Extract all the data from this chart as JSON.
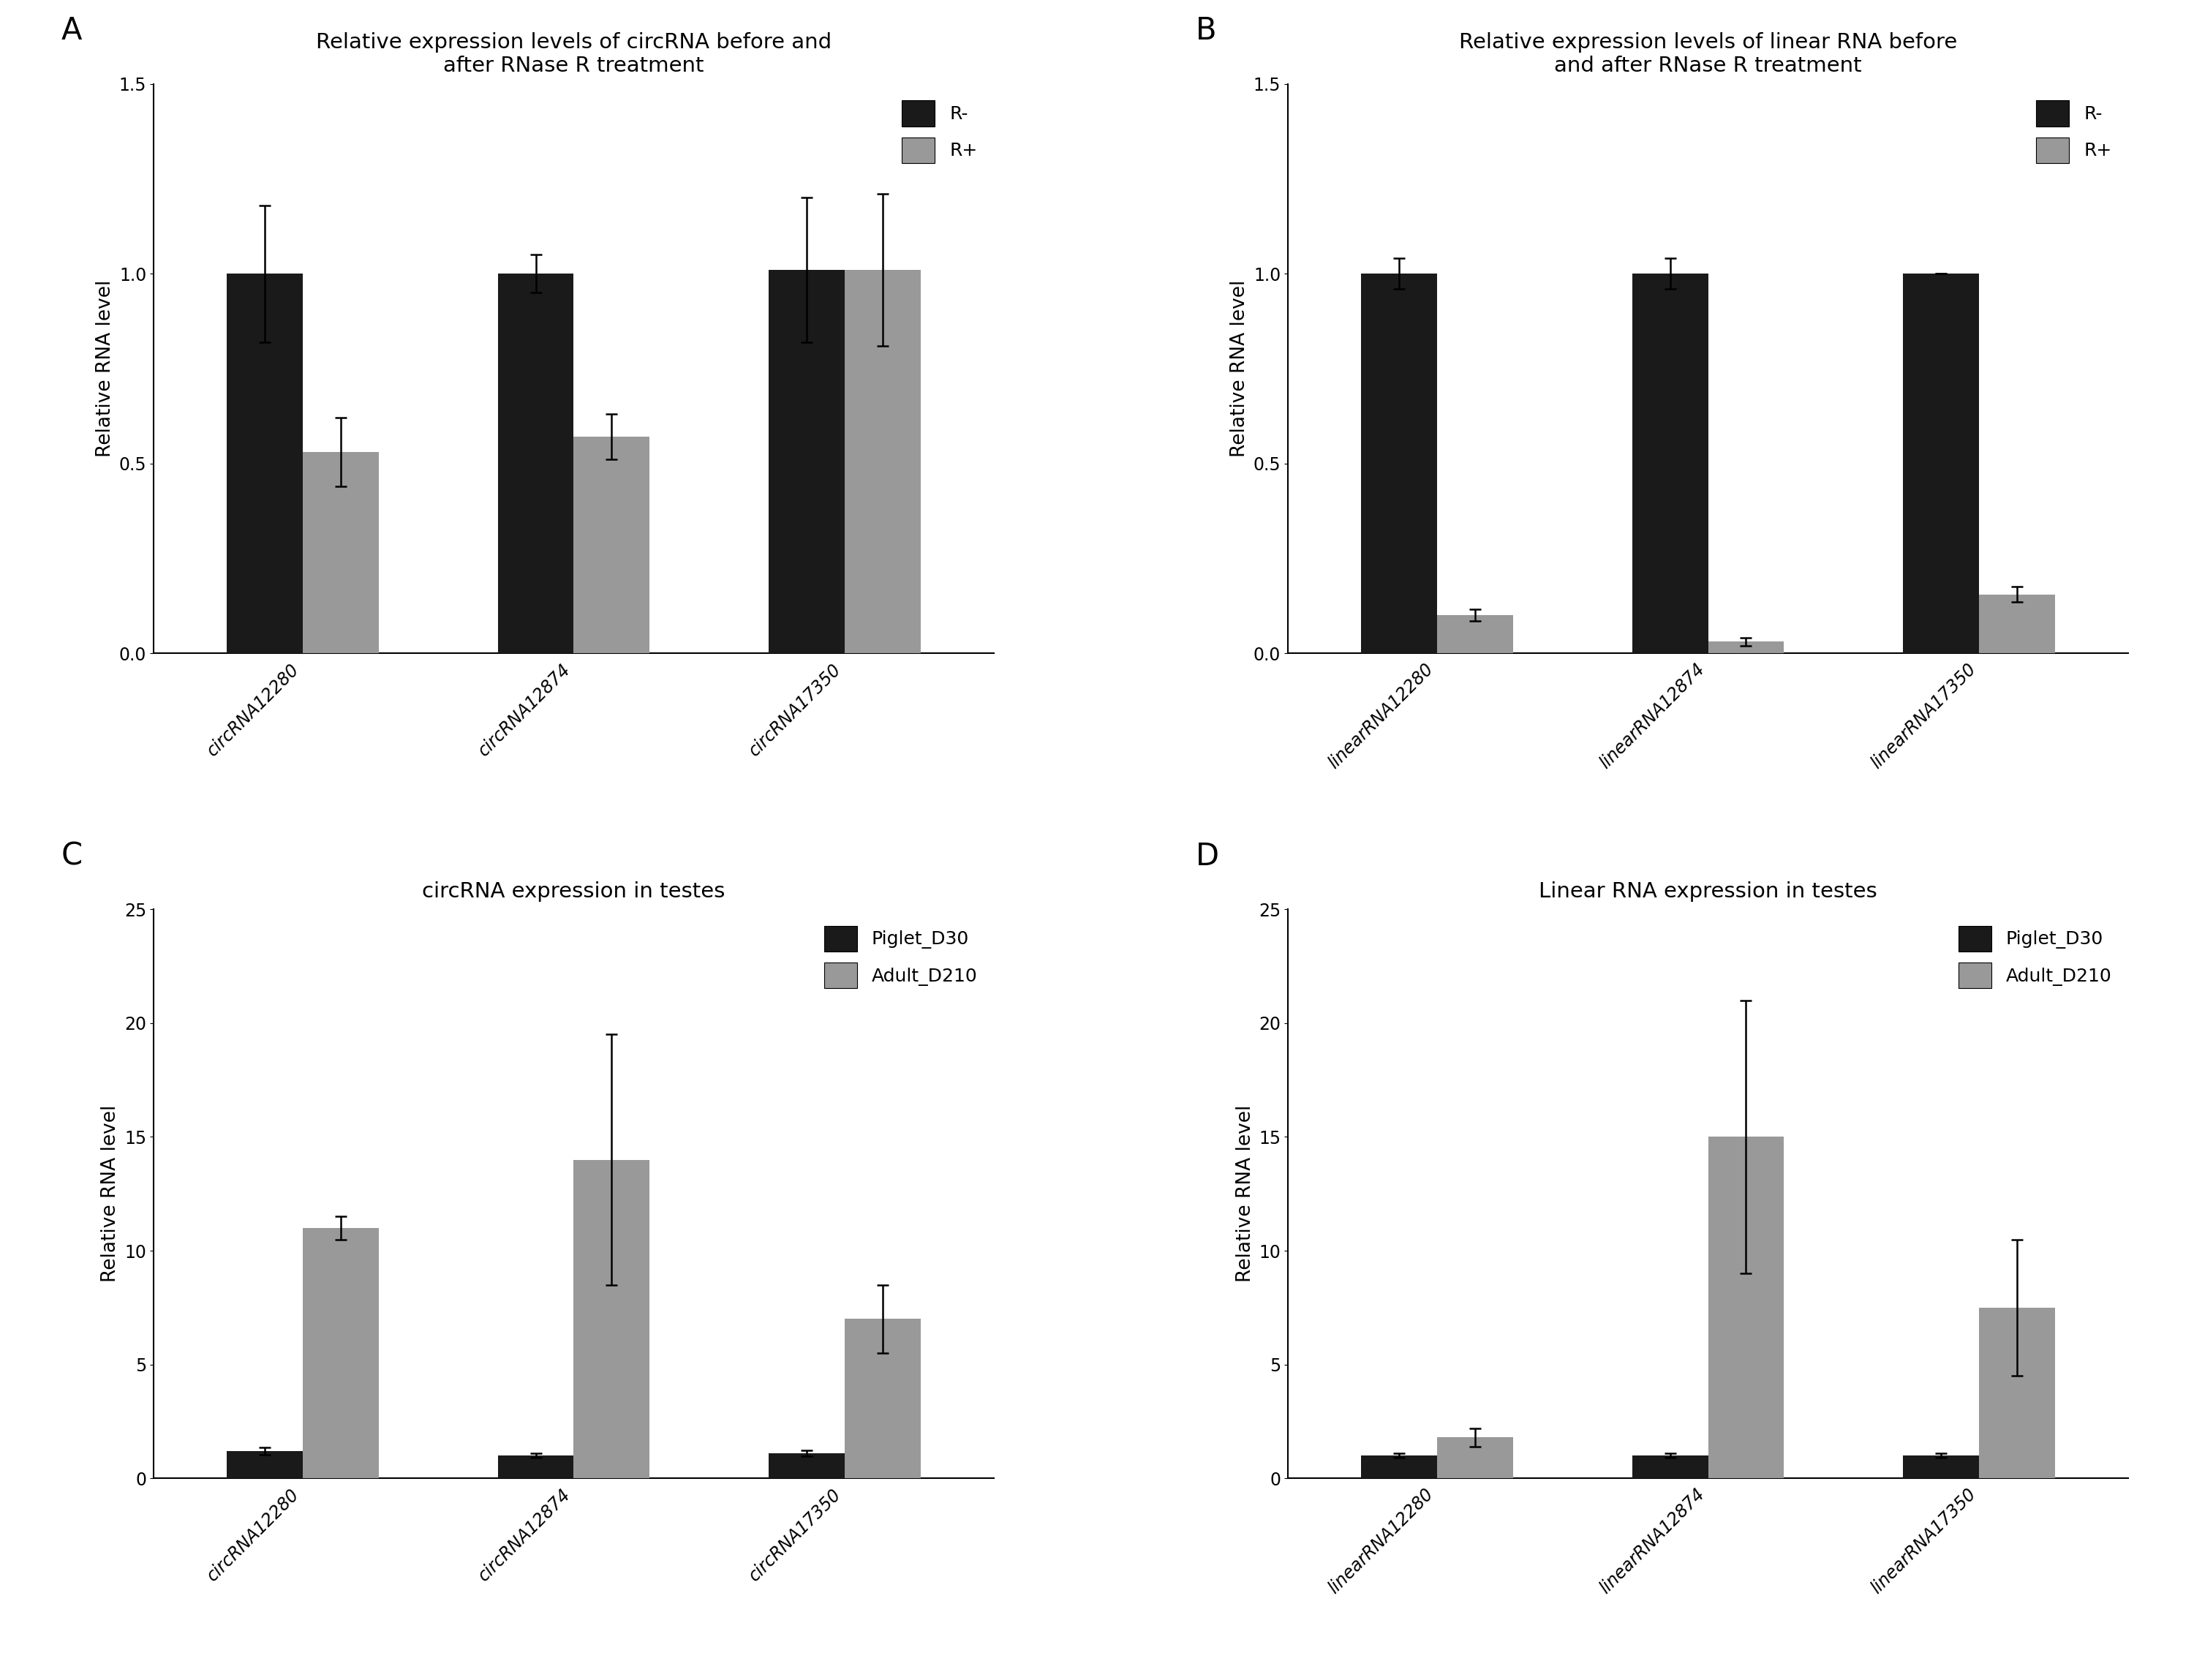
{
  "panel_A": {
    "title": "Relative expression levels of circRNA before and\nafter RNase R treatment",
    "panel_label": "A",
    "categories": [
      "circRNA12280",
      "circRNA12874",
      "circRNA17350"
    ],
    "series": [
      {
        "name": "R-",
        "values": [
          1.0,
          1.0,
          1.01
        ],
        "errors": [
          0.18,
          0.05,
          0.19
        ],
        "color": "#1a1a1a"
      },
      {
        "name": "R+",
        "values": [
          0.53,
          0.57,
          1.01
        ],
        "errors": [
          0.09,
          0.06,
          0.2
        ],
        "color": "#999999"
      }
    ],
    "ylabel": "Relative RNA level",
    "ylim": [
      0,
      1.5
    ],
    "yticks": [
      0.0,
      0.5,
      1.0,
      1.5
    ]
  },
  "panel_B": {
    "title": "Relative expression levels of linear RNA before\nand after RNase R treatment",
    "panel_label": "B",
    "categories": [
      "linearRNA12280",
      "linearRNA12874",
      "linearRNA17350"
    ],
    "series": [
      {
        "name": "R-",
        "values": [
          1.0,
          1.0,
          1.0
        ],
        "errors": [
          0.04,
          0.04,
          0.0
        ],
        "color": "#1a1a1a"
      },
      {
        "name": "R+",
        "values": [
          0.1,
          0.03,
          0.155
        ],
        "errors": [
          0.015,
          0.01,
          0.02
        ],
        "color": "#999999"
      }
    ],
    "ylabel": "Relative RNA level",
    "ylim": [
      0,
      1.5
    ],
    "yticks": [
      0.0,
      0.5,
      1.0,
      1.5
    ]
  },
  "panel_C": {
    "title": "circRNA expression in testes",
    "panel_label": "C",
    "categories": [
      "circRNA12280",
      "circRNA12874",
      "circRNA17350"
    ],
    "series": [
      {
        "name": "Piglet_D30",
        "values": [
          1.2,
          1.0,
          1.1
        ],
        "errors": [
          0.15,
          0.1,
          0.12
        ],
        "color": "#1a1a1a"
      },
      {
        "name": "Adult_D210",
        "values": [
          11.0,
          14.0,
          7.0
        ],
        "errors": [
          0.5,
          5.5,
          1.5
        ],
        "color": "#999999"
      }
    ],
    "ylabel": "Relative RNA level",
    "ylim": [
      0,
      25
    ],
    "yticks": [
      0,
      5,
      10,
      15,
      20,
      25
    ]
  },
  "panel_D": {
    "title": "Linear RNA expression in testes",
    "panel_label": "D",
    "categories": [
      "linearRNA12280",
      "linearRNA12874",
      "linearRNA17350"
    ],
    "series": [
      {
        "name": "Piglet_D30",
        "values": [
          1.0,
          1.0,
          1.0
        ],
        "errors": [
          0.1,
          0.1,
          0.1
        ],
        "color": "#1a1a1a"
      },
      {
        "name": "Adult_D210",
        "values": [
          1.8,
          15.0,
          7.5
        ],
        "errors": [
          0.4,
          6.0,
          3.0
        ],
        "color": "#999999"
      }
    ],
    "ylabel": "Relative RNA level",
    "ylim": [
      0,
      25
    ],
    "yticks": [
      0,
      5,
      10,
      15,
      20,
      25
    ]
  },
  "background_color": "#ffffff",
  "bar_width": 0.28,
  "fontsize_title": 21,
  "fontsize_label": 19,
  "fontsize_tick": 17,
  "fontsize_legend": 18,
  "fontsize_panel_label": 30
}
